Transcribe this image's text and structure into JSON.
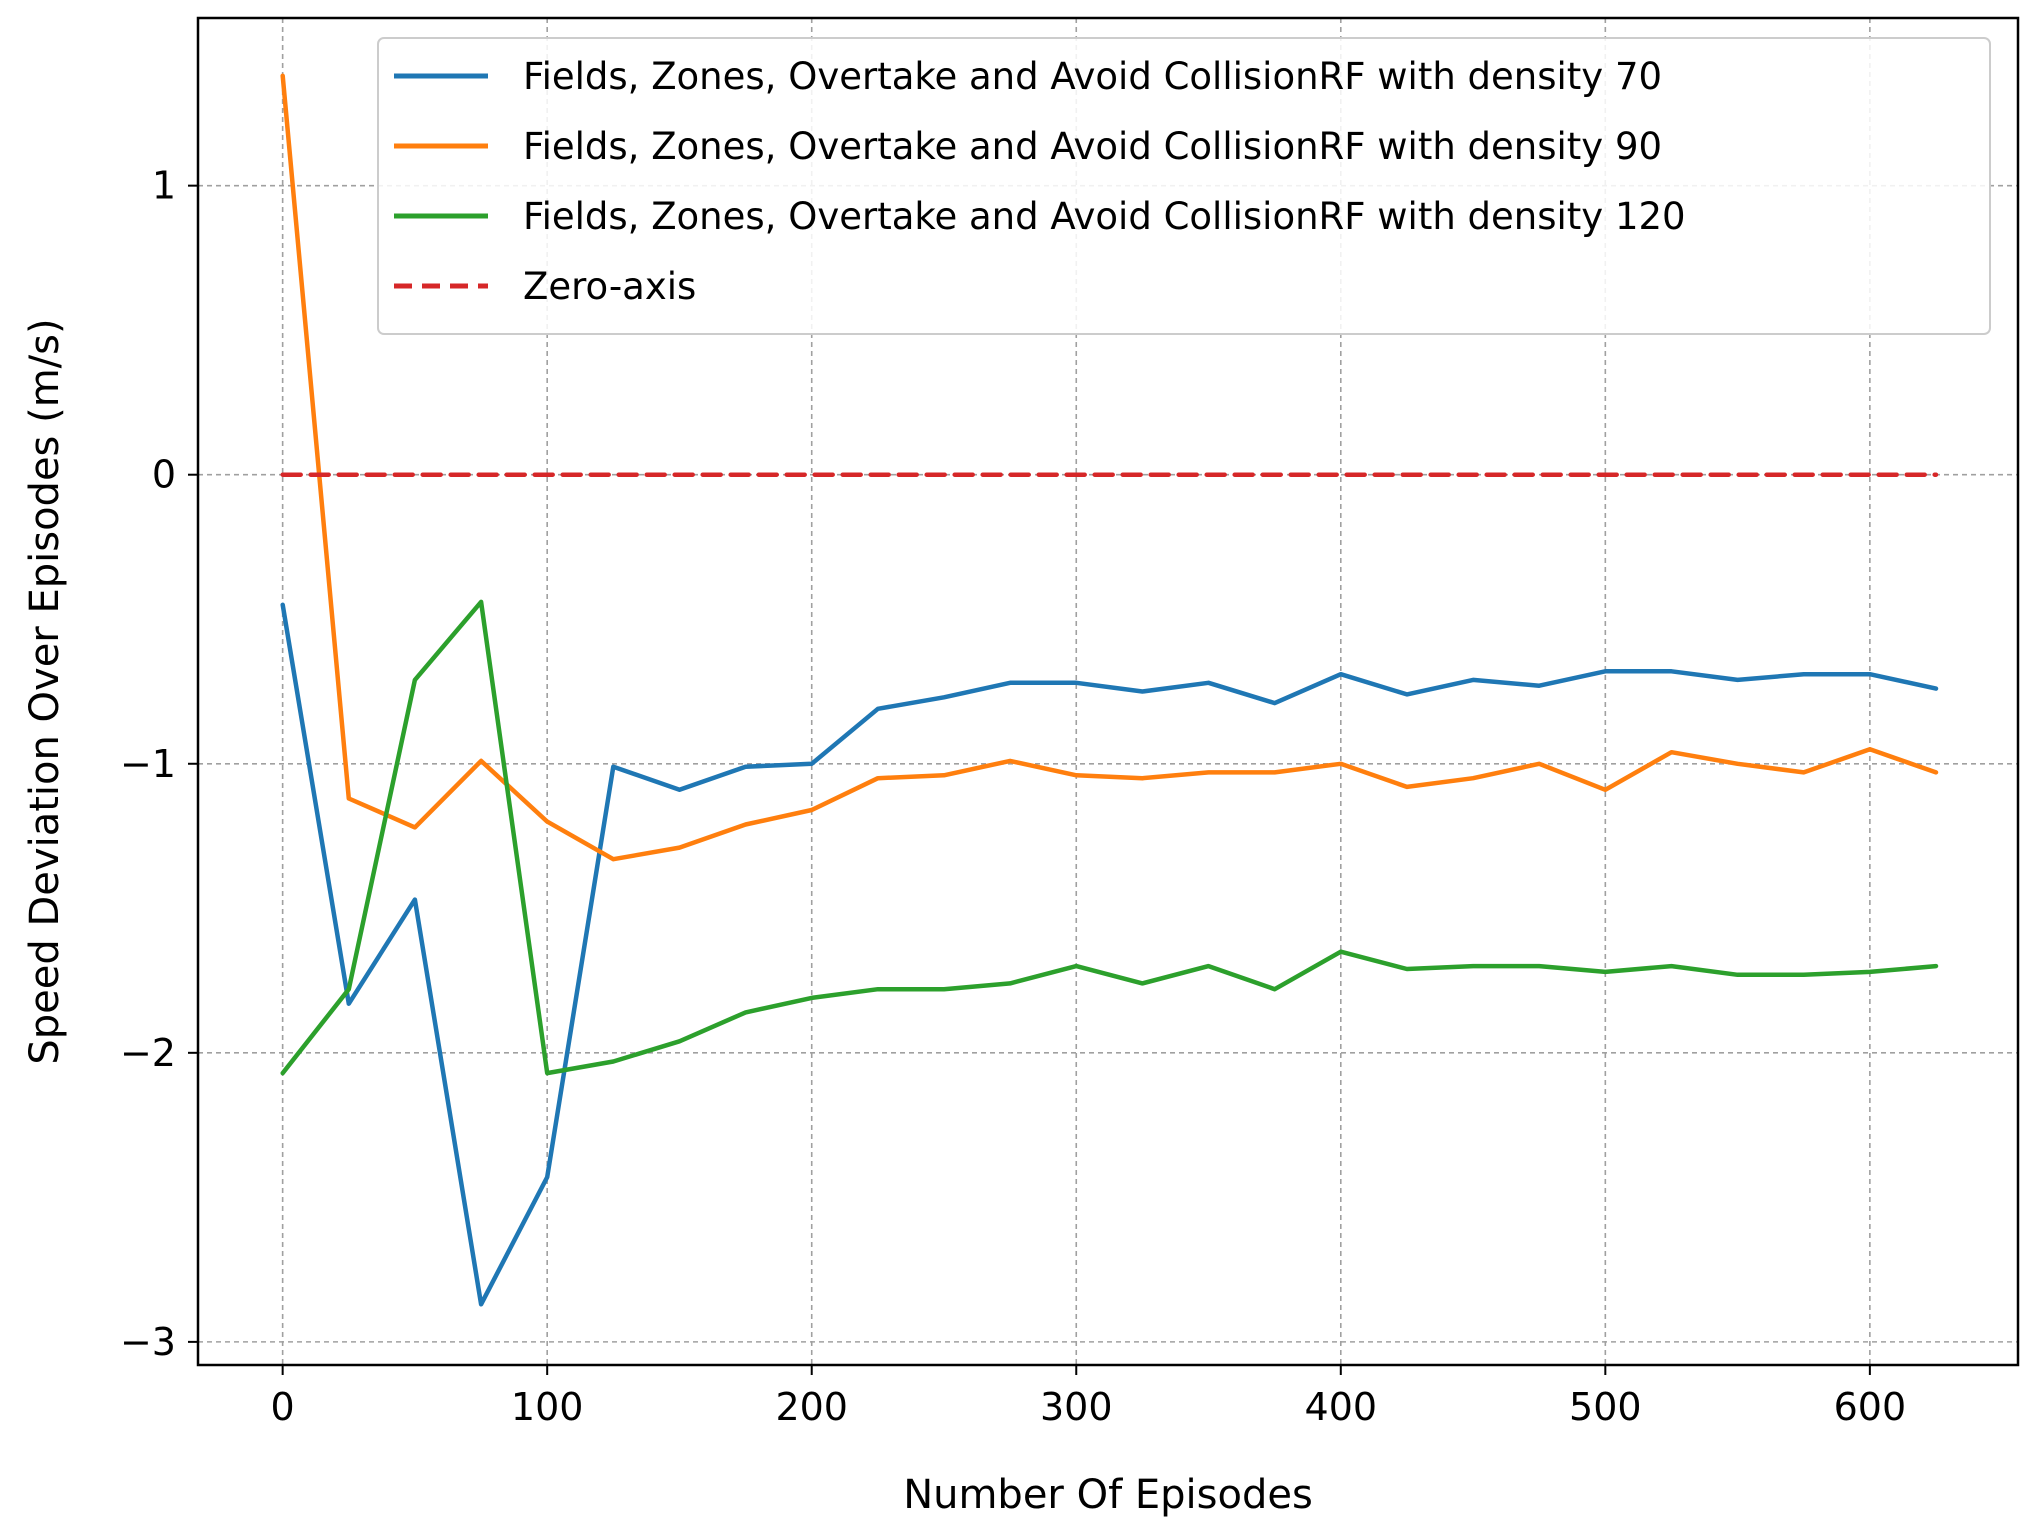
{
  "chart_data": {
    "type": "line",
    "title": "",
    "xlabel": "Number Of Episodes",
    "ylabel": "Speed Deviation Over Episodes (m/s)",
    "xlim": [
      -32,
      656
    ],
    "ylim": [
      -3.08,
      1.58
    ],
    "xticks": [
      0,
      100,
      200,
      300,
      400,
      500,
      600
    ],
    "xtick_labels": [
      "0",
      "100",
      "200",
      "300",
      "400",
      "500",
      "600"
    ],
    "yticks": [
      1,
      0,
      -1,
      -2,
      -3
    ],
    "ytick_labels": [
      "1",
      "0",
      "−1",
      "−2",
      "−3"
    ],
    "grid": true,
    "legend_position": "top-right",
    "x": [
      0,
      25,
      50,
      75,
      100,
      125,
      150,
      175,
      200,
      225,
      250,
      275,
      300,
      325,
      350,
      375,
      400,
      425,
      450,
      475,
      500,
      525,
      550,
      575,
      600,
      625
    ],
    "series": [
      {
        "name": "Fields, Zones, Overtake and Avoid CollisionRF with density 70",
        "color": "#1f77b4",
        "style": "solid",
        "values": [
          -0.45,
          -1.83,
          -1.47,
          -2.87,
          -2.43,
          -1.01,
          -1.09,
          -1.01,
          -1.0,
          -0.81,
          -0.77,
          -0.72,
          -0.72,
          -0.75,
          -0.72,
          -0.79,
          -0.69,
          -0.76,
          -0.71,
          -0.73,
          -0.68,
          -0.68,
          -0.71,
          -0.69,
          -0.69,
          -0.74
        ]
      },
      {
        "name": "Fields, Zones, Overtake and Avoid CollisionRF with density 90",
        "color": "#ff7f0e",
        "style": "solid",
        "values": [
          1.38,
          -1.12,
          -1.22,
          -0.99,
          -1.2,
          -1.33,
          -1.29,
          -1.21,
          -1.16,
          -1.05,
          -1.04,
          -0.99,
          -1.04,
          -1.05,
          -1.03,
          -1.03,
          -1.0,
          -1.08,
          -1.05,
          -1.0,
          -1.09,
          -0.96,
          -1.0,
          -1.03,
          -0.95,
          -1.03
        ]
      },
      {
        "name": "Fields, Zones, Overtake and Avoid CollisionRF with density 120",
        "color": "#2ca02c",
        "style": "solid",
        "values": [
          -2.07,
          -1.78,
          -0.71,
          -0.44,
          -2.07,
          -2.03,
          -1.96,
          -1.86,
          -1.81,
          -1.78,
          -1.78,
          -1.76,
          -1.7,
          -1.76,
          -1.7,
          -1.78,
          -1.65,
          -1.71,
          -1.7,
          -1.7,
          -1.72,
          -1.7,
          -1.73,
          -1.73,
          -1.72,
          -1.7
        ]
      },
      {
        "name": "Zero-axis",
        "color": "#d62728",
        "style": "dashed",
        "values": [
          0,
          0,
          0,
          0,
          0,
          0,
          0,
          0,
          0,
          0,
          0,
          0,
          0,
          0,
          0,
          0,
          0,
          0,
          0,
          0,
          0,
          0,
          0,
          0,
          0,
          0
        ]
      }
    ]
  }
}
